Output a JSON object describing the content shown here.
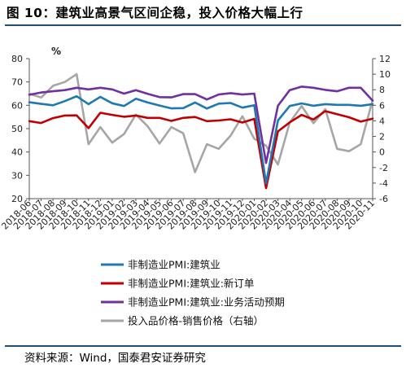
{
  "header": {
    "title": "图 10：建筑业高景气区间企稳，投入价格大幅上行"
  },
  "footer": {
    "source": "资料来源：Wind，国泰君安证券研究"
  },
  "colors": {
    "blue": "#1f77b4",
    "red": "#c00000",
    "purple": "#7030a0",
    "gray": "#a6a6a6",
    "rule": "#1f4e79"
  },
  "chart_data": {
    "type": "line",
    "ylabel_left": "%",
    "ylim_left": [
      20,
      80
    ],
    "yticks_left": [
      "20",
      "30",
      "40",
      "50",
      "60",
      "70",
      "80"
    ],
    "ylim_right": [
      -6,
      12
    ],
    "yticks_right": [
      "-6",
      "-4",
      "-2",
      "0",
      "2",
      "4",
      "6",
      "8",
      "10",
      "12"
    ],
    "grid": false,
    "legend_position": "bottom",
    "categories": [
      "2018-06",
      "2018-07",
      "2018-08",
      "2018-09",
      "2018-10",
      "2018-11",
      "2018-12",
      "2019-01",
      "2019-02",
      "2019-03",
      "2019-04",
      "2019-05",
      "2019-06",
      "2019-07",
      "2019-08",
      "2019-09",
      "2019-10",
      "2019-11",
      "2019-12",
      "2020-01",
      "2020-02",
      "2020-03",
      "2020-04",
      "2020-05",
      "2020-06",
      "2020-07",
      "2020-08",
      "2020-09",
      "2020-10",
      "2020-11"
    ],
    "series": [
      {
        "name": "非制造业PMI:建筑业",
        "axis": "left",
        "color": "#1f77b4",
        "values": [
          61.3,
          60.6,
          60.0,
          61.8,
          63.9,
          60.5,
          63.6,
          60.9,
          59.7,
          62.8,
          61.2,
          59.9,
          58.7,
          58.8,
          61.2,
          58.6,
          60.7,
          61.0,
          59.0,
          60.0,
          26.6,
          53.5,
          59.7,
          60.8,
          59.8,
          60.5,
          60.2,
          60.2,
          59.8,
          60.5
        ]
      },
      {
        "name": "非制造业PMI:建筑业:新订单",
        "axis": "left",
        "color": "#c00000",
        "values": [
          53.2,
          52.4,
          54.5,
          55.6,
          55.7,
          50.2,
          56.8,
          55.9,
          55.1,
          55.6,
          54.6,
          54.6,
          53.3,
          54.6,
          55.0,
          53.2,
          53.5,
          54.0,
          52.6,
          54.2,
          24.5,
          48.8,
          52.7,
          55.9,
          53.9,
          57.5,
          56.2,
          54.9,
          53.0,
          54.3
        ]
      },
      {
        "name": "非制造业PMI:建筑业:业务活动预期",
        "axis": "left",
        "color": "#7030a0",
        "values": [
          64.5,
          65.5,
          66.0,
          66.5,
          67.5,
          66.8,
          67.5,
          66.8,
          65.0,
          66.5,
          64.9,
          63.5,
          63.4,
          64.8,
          64.8,
          62.5,
          64.6,
          65.2,
          64.6,
          65.0,
          35.3,
          59.8,
          66.5,
          68.0,
          67.5,
          66.6,
          66.0,
          67.5,
          67.5,
          62.0
        ]
      },
      {
        "name": "投入品价格-销售价格（右轴）",
        "axis": "right",
        "color": "#a6a6a6",
        "values": [
          7.5,
          7.0,
          8.5,
          9.0,
          10.0,
          1.0,
          3.2,
          1.2,
          2.3,
          4.8,
          3.3,
          1.1,
          3.2,
          2.4,
          -2.6,
          1.0,
          0.4,
          2.1,
          4.6,
          1.7,
          0.8,
          -1.6,
          3.8,
          5.9,
          3.7,
          5.5,
          0.4,
          0.1,
          1.0,
          6.7
        ]
      }
    ],
    "legend": [
      {
        "label": "非制造业PMI:建筑业",
        "color": "#1f77b4"
      },
      {
        "label": "非制造业PMI:建筑业:新订单",
        "color": "#c00000"
      },
      {
        "label": "非制造业PMI:建筑业:业务活动预期",
        "color": "#7030a0"
      },
      {
        "label": "投入品价格-销售价格（右轴）",
        "color": "#a6a6a6"
      }
    ]
  }
}
